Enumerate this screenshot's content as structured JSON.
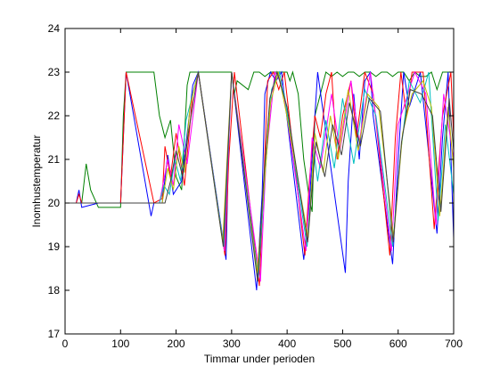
{
  "chart_data": {
    "type": "line",
    "title": "",
    "xlabel": "Timmar under perioden",
    "ylabel": "Inomhustemperatur",
    "xlim": [
      0,
      700
    ],
    "ylim": [
      17,
      24
    ],
    "xticks": [
      0,
      100,
      200,
      300,
      400,
      500,
      600,
      700
    ],
    "yticks": [
      17,
      18,
      19,
      20,
      21,
      22,
      23,
      24
    ],
    "grid": false,
    "legend": "none",
    "series": [
      {
        "color": "#008000",
        "x": [
          0,
          30,
          38,
          46,
          60,
          100,
          105,
          110,
          160,
          170,
          180,
          190,
          200,
          210,
          220,
          225,
          235,
          240,
          250,
          300,
          305,
          310,
          330,
          340,
          350,
          360,
          370,
          380,
          390,
          400,
          405,
          410,
          420,
          430,
          440,
          445,
          450,
          470,
          480,
          490,
          500,
          510,
          520,
          530,
          540,
          550,
          560,
          570,
          580,
          590,
          600,
          610,
          620,
          630,
          640,
          650,
          660,
          670,
          680,
          690,
          700
        ],
        "y": [
          20.0,
          20.0,
          20.9,
          20.3,
          19.9,
          19.9,
          22.0,
          23.0,
          23.0,
          22.0,
          21.5,
          21.9,
          20.6,
          20.3,
          22.7,
          23.0,
          23.0,
          23.0,
          23.0,
          23.0,
          22.5,
          22.8,
          22.6,
          23.0,
          23.0,
          22.9,
          23.0,
          23.0,
          23.0,
          23.0,
          22.8,
          23.0,
          22.5,
          21.0,
          20.1,
          19.8,
          22.0,
          23.0,
          22.9,
          23.0,
          22.9,
          23.0,
          23.0,
          22.9,
          23.0,
          23.0,
          22.9,
          23.0,
          23.0,
          22.9,
          23.0,
          23.0,
          22.8,
          23.0,
          22.9,
          22.9,
          23.0,
          22.6,
          23.0,
          23.0,
          23.0
        ]
      },
      {
        "color": "#0000ff",
        "x": [
          0,
          20,
          25,
          30,
          60,
          100,
          110,
          155,
          160,
          175,
          185,
          195,
          210,
          230,
          240,
          290,
          295,
          300,
          345,
          355,
          360,
          370,
          380,
          390,
          430,
          440,
          445,
          455,
          505,
          510,
          520,
          530,
          540,
          550,
          555,
          590,
          600,
          610,
          620,
          640,
          670,
          680,
          690,
          700
        ],
        "y": [
          20.0,
          20.0,
          20.3,
          19.9,
          20.0,
          20.0,
          23.0,
          19.7,
          20.0,
          20.0,
          21.1,
          20.2,
          20.5,
          22.7,
          23.0,
          18.7,
          21.5,
          23.0,
          18.0,
          20.2,
          22.5,
          23.0,
          22.8,
          23.0,
          18.7,
          20.0,
          21.0,
          23.0,
          18.4,
          20.5,
          22.5,
          21.0,
          22.8,
          23.0,
          22.0,
          18.6,
          21.0,
          23.0,
          22.2,
          23.0,
          19.3,
          21.5,
          23.0,
          19.2
        ]
      },
      {
        "color": "#ff0000",
        "x": [
          0,
          20,
          25,
          30,
          60,
          100,
          110,
          160,
          175,
          180,
          190,
          200,
          215,
          230,
          240,
          288,
          295,
          305,
          350,
          358,
          365,
          375,
          385,
          395,
          432,
          440,
          450,
          460,
          470,
          480,
          490,
          500,
          515,
          525,
          540,
          555,
          585,
          595,
          605,
          615,
          625,
          645,
          665,
          680,
          695,
          700
        ],
        "y": [
          20.0,
          20.0,
          20.2,
          20.0,
          20.0,
          20.0,
          23.0,
          20.0,
          20.1,
          21.3,
          20.6,
          21.6,
          20.4,
          22.5,
          23.0,
          18.8,
          21.0,
          23.0,
          18.1,
          20.5,
          22.8,
          23.0,
          22.6,
          23.0,
          18.8,
          20.5,
          22.0,
          21.5,
          22.5,
          23.0,
          21.0,
          22.0,
          22.8,
          21.5,
          23.0,
          22.5,
          18.8,
          21.5,
          23.0,
          22.0,
          23.0,
          23.0,
          19.4,
          22.0,
          23.0,
          21.5
        ]
      },
      {
        "color": "#ff00ff",
        "x": [
          0,
          170,
          185,
          195,
          205,
          220,
          240,
          287,
          300,
          352,
          362,
          378,
          392,
          434,
          445,
          460,
          480,
          495,
          515,
          530,
          550,
          588,
          600,
          615,
          630,
          650,
          668,
          682,
          700
        ],
        "y": [
          20.0,
          20.0,
          21.0,
          20.4,
          21.8,
          20.9,
          23.0,
          18.9,
          23.0,
          18.2,
          21.0,
          23.0,
          22.7,
          18.9,
          21.5,
          20.8,
          22.5,
          21.2,
          22.8,
          21.4,
          23.0,
          18.9,
          21.8,
          22.4,
          23.0,
          22.5,
          19.5,
          22.5,
          21.0
        ]
      },
      {
        "color": "#00bfbf",
        "x": [
          0,
          170,
          178,
          188,
          198,
          208,
          218,
          240,
          286,
          300,
          348,
          360,
          372,
          386,
          396,
          436,
          448,
          455,
          470,
          485,
          500,
          520,
          540,
          560,
          590,
          605,
          620,
          640,
          655,
          672,
          685,
          700
        ],
        "y": [
          20.0,
          20.0,
          20.4,
          20.2,
          21.0,
          20.5,
          21.9,
          23.0,
          19.0,
          23.0,
          18.3,
          20.6,
          22.6,
          23.0,
          22.4,
          19.0,
          21.2,
          20.5,
          21.9,
          20.8,
          22.4,
          20.9,
          22.6,
          22.0,
          19.0,
          21.2,
          22.8,
          22.3,
          23.0,
          19.6,
          21.8,
          20.2
        ]
      },
      {
        "color": "#bfbf00",
        "x": [
          0,
          175,
          185,
          195,
          205,
          215,
          225,
          240,
          284,
          300,
          346,
          358,
          370,
          384,
          398,
          438,
          450,
          465,
          478,
          492,
          510,
          528,
          545,
          565,
          592,
          608,
          625,
          645,
          660,
          675,
          690,
          700
        ],
        "y": [
          20.0,
          20.0,
          20.8,
          20.3,
          21.3,
          20.7,
          22.2,
          23.0,
          19.1,
          23.0,
          18.4,
          20.3,
          22.3,
          23.0,
          22.1,
          19.2,
          21.6,
          20.7,
          22.0,
          21.0,
          22.6,
          21.2,
          22.5,
          22.2,
          19.2,
          21.6,
          22.5,
          22.8,
          22.2,
          19.7,
          22.2,
          20.8
        ]
      },
      {
        "color": "#404040",
        "x": [
          0,
          180,
          190,
          200,
          212,
          222,
          240,
          285,
          300,
          347,
          357,
          369,
          382,
          400,
          437,
          452,
          468,
          482,
          498,
          512,
          532,
          548,
          568,
          591,
          606,
          622,
          642,
          662,
          677,
          692,
          700
        ],
        "y": [
          20.0,
          20.0,
          20.5,
          21.2,
          20.6,
          21.6,
          23.0,
          19.0,
          23.0,
          18.2,
          20.4,
          22.4,
          23.0,
          22.2,
          19.1,
          21.4,
          20.6,
          21.8,
          21.1,
          22.3,
          21.3,
          22.4,
          22.1,
          19.1,
          21.4,
          22.6,
          22.5,
          22.0,
          19.8,
          22.4,
          21.2
        ]
      }
    ]
  }
}
